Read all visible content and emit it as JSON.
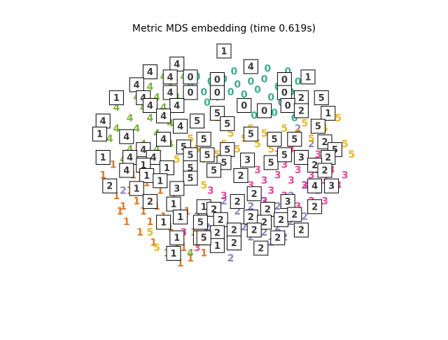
{
  "chart_data": {
    "type": "scatter",
    "title": "Metric MDS embedding (time 0.619s)",
    "axes_visible": false,
    "grid": false,
    "legend": "none",
    "xlim": [
      0,
      1
    ],
    "ylim": [
      0,
      1
    ],
    "series": [
      {
        "name": "0",
        "label": "0",
        "color": "#1b9e77",
        "points": [
          [
            0.4,
            0.82
          ],
          [
            0.42,
            0.86
          ],
          [
            0.44,
            0.8
          ],
          [
            0.46,
            0.84
          ],
          [
            0.48,
            0.78
          ],
          [
            0.5,
            0.85
          ],
          [
            0.52,
            0.8
          ],
          [
            0.54,
            0.83
          ],
          [
            0.56,
            0.79
          ],
          [
            0.58,
            0.84
          ],
          [
            0.6,
            0.81
          ],
          [
            0.62,
            0.85
          ],
          [
            0.64,
            0.78
          ],
          [
            0.66,
            0.82
          ],
          [
            0.68,
            0.86
          ],
          [
            0.7,
            0.8
          ],
          [
            0.72,
            0.84
          ],
          [
            0.74,
            0.78
          ],
          [
            0.45,
            0.76
          ],
          [
            0.55,
            0.75
          ],
          [
            0.61,
            0.74
          ],
          [
            0.67,
            0.76
          ],
          [
            0.73,
            0.75
          ],
          [
            0.53,
            0.88
          ],
          [
            0.63,
            0.89
          ],
          [
            0.69,
            0.88
          ],
          [
            0.49,
            0.72
          ],
          [
            0.59,
            0.71
          ],
          [
            0.65,
            0.72
          ],
          [
            0.71,
            0.7
          ]
        ]
      },
      {
        "name": "1",
        "label": "1",
        "color": "#d95f02",
        "points": [
          [
            0.14,
            0.48
          ],
          [
            0.16,
            0.44
          ],
          [
            0.18,
            0.4
          ],
          [
            0.2,
            0.36
          ],
          [
            0.22,
            0.42
          ],
          [
            0.24,
            0.38
          ],
          [
            0.26,
            0.34
          ],
          [
            0.28,
            0.3
          ],
          [
            0.3,
            0.36
          ],
          [
            0.32,
            0.32
          ],
          [
            0.34,
            0.28
          ],
          [
            0.36,
            0.24
          ],
          [
            0.38,
            0.2
          ],
          [
            0.4,
            0.16
          ],
          [
            0.42,
            0.22
          ],
          [
            0.44,
            0.18
          ],
          [
            0.23,
            0.48
          ],
          [
            0.27,
            0.45
          ],
          [
            0.31,
            0.42
          ],
          [
            0.35,
            0.4
          ],
          [
            0.17,
            0.52
          ],
          [
            0.21,
            0.3
          ],
          [
            0.25,
            0.26
          ],
          [
            0.29,
            0.22
          ],
          [
            0.33,
            0.18
          ],
          [
            0.37,
            0.14
          ],
          [
            0.19,
            0.34
          ],
          [
            0.41,
            0.26
          ],
          [
            0.43,
            0.3
          ],
          [
            0.39,
            0.34
          ]
        ]
      },
      {
        "name": "2",
        "label": "2",
        "color": "#7570b3",
        "points": [
          [
            0.42,
            0.32
          ],
          [
            0.45,
            0.28
          ],
          [
            0.48,
            0.24
          ],
          [
            0.5,
            0.3
          ],
          [
            0.52,
            0.26
          ],
          [
            0.54,
            0.22
          ],
          [
            0.56,
            0.28
          ],
          [
            0.58,
            0.24
          ],
          [
            0.6,
            0.2
          ],
          [
            0.62,
            0.26
          ],
          [
            0.64,
            0.22
          ],
          [
            0.66,
            0.28
          ],
          [
            0.68,
            0.24
          ],
          [
            0.7,
            0.3
          ],
          [
            0.72,
            0.26
          ],
          [
            0.74,
            0.32
          ],
          [
            0.46,
            0.36
          ],
          [
            0.5,
            0.38
          ],
          [
            0.54,
            0.34
          ],
          [
            0.58,
            0.36
          ],
          [
            0.62,
            0.38
          ],
          [
            0.66,
            0.36
          ],
          [
            0.7,
            0.4
          ],
          [
            0.74,
            0.44
          ],
          [
            0.78,
            0.5
          ],
          [
            0.8,
            0.56
          ],
          [
            0.76,
            0.6
          ],
          [
            0.72,
            0.66
          ],
          [
            0.2,
            0.42
          ],
          [
            0.52,
            0.16
          ]
        ]
      },
      {
        "name": "3",
        "label": "3",
        "color": "#e7298a",
        "points": [
          [
            0.55,
            0.48
          ],
          [
            0.58,
            0.44
          ],
          [
            0.6,
            0.5
          ],
          [
            0.62,
            0.46
          ],
          [
            0.64,
            0.42
          ],
          [
            0.66,
            0.48
          ],
          [
            0.68,
            0.52
          ],
          [
            0.7,
            0.46
          ],
          [
            0.72,
            0.5
          ],
          [
            0.74,
            0.44
          ],
          [
            0.76,
            0.48
          ],
          [
            0.78,
            0.42
          ],
          [
            0.8,
            0.46
          ],
          [
            0.82,
            0.5
          ],
          [
            0.84,
            0.44
          ],
          [
            0.86,
            0.48
          ],
          [
            0.66,
            0.56
          ],
          [
            0.7,
            0.58
          ],
          [
            0.74,
            0.54
          ],
          [
            0.78,
            0.56
          ],
          [
            0.82,
            0.54
          ],
          [
            0.62,
            0.38
          ],
          [
            0.68,
            0.4
          ],
          [
            0.72,
            0.36
          ],
          [
            0.76,
            0.38
          ],
          [
            0.5,
            0.4
          ],
          [
            0.46,
            0.42
          ],
          [
            0.42,
            0.2
          ],
          [
            0.38,
            0.26
          ],
          [
            0.8,
            0.38
          ]
        ]
      },
      {
        "name": "4",
        "label": "4",
        "color": "#66a61e",
        "points": [
          [
            0.18,
            0.66
          ],
          [
            0.2,
            0.62
          ],
          [
            0.22,
            0.7
          ],
          [
            0.24,
            0.66
          ],
          [
            0.26,
            0.74
          ],
          [
            0.28,
            0.7
          ],
          [
            0.3,
            0.78
          ],
          [
            0.32,
            0.74
          ],
          [
            0.34,
            0.82
          ],
          [
            0.36,
            0.78
          ],
          [
            0.38,
            0.86
          ],
          [
            0.22,
            0.58
          ],
          [
            0.26,
            0.6
          ],
          [
            0.3,
            0.64
          ],
          [
            0.34,
            0.68
          ],
          [
            0.24,
            0.78
          ],
          [
            0.28,
            0.82
          ],
          [
            0.32,
            0.86
          ],
          [
            0.36,
            0.9
          ],
          [
            0.2,
            0.54
          ],
          [
            0.16,
            0.62
          ],
          [
            0.14,
            0.7
          ],
          [
            0.18,
            0.74
          ],
          [
            0.3,
            0.58
          ],
          [
            0.26,
            0.52
          ],
          [
            0.34,
            0.6
          ],
          [
            0.32,
            0.52
          ],
          [
            0.36,
            0.2
          ],
          [
            0.4,
            0.18
          ],
          [
            0.58,
            0.9
          ]
        ]
      },
      {
        "name": "5",
        "label": "5",
        "color": "#e6ab02",
        "points": [
          [
            0.38,
            0.66
          ],
          [
            0.4,
            0.62
          ],
          [
            0.42,
            0.58
          ],
          [
            0.44,
            0.54
          ],
          [
            0.46,
            0.5
          ],
          [
            0.48,
            0.56
          ],
          [
            0.5,
            0.6
          ],
          [
            0.52,
            0.64
          ],
          [
            0.54,
            0.58
          ],
          [
            0.56,
            0.62
          ],
          [
            0.58,
            0.66
          ],
          [
            0.6,
            0.6
          ],
          [
            0.62,
            0.64
          ],
          [
            0.64,
            0.58
          ],
          [
            0.66,
            0.62
          ],
          [
            0.68,
            0.66
          ],
          [
            0.7,
            0.6
          ],
          [
            0.72,
            0.64
          ],
          [
            0.74,
            0.68
          ],
          [
            0.76,
            0.62
          ],
          [
            0.8,
            0.66
          ],
          [
            0.84,
            0.7
          ],
          [
            0.86,
            0.6
          ],
          [
            0.88,
            0.56
          ],
          [
            0.36,
            0.54
          ],
          [
            0.4,
            0.46
          ],
          [
            0.44,
            0.44
          ],
          [
            0.3,
            0.2
          ],
          [
            0.28,
            0.26
          ],
          [
            0.48,
            0.7
          ]
        ]
      }
    ],
    "thumbnails": [
      {
        "label": "1",
        "x": 0.5,
        "y": 0.96
      },
      {
        "label": "4",
        "x": 0.58,
        "y": 0.9
      },
      {
        "label": "4",
        "x": 0.28,
        "y": 0.88
      },
      {
        "label": "4",
        "x": 0.36,
        "y": 0.91
      },
      {
        "label": "4",
        "x": 0.34,
        "y": 0.86
      },
      {
        "label": "0",
        "x": 0.4,
        "y": 0.86
      },
      {
        "label": "0",
        "x": 0.48,
        "y": 0.85
      },
      {
        "label": "0",
        "x": 0.68,
        "y": 0.85
      },
      {
        "label": "1",
        "x": 0.75,
        "y": 0.86
      },
      {
        "label": "4",
        "x": 0.24,
        "y": 0.83
      },
      {
        "label": "1",
        "x": 0.18,
        "y": 0.78
      },
      {
        "label": "4",
        "x": 0.26,
        "y": 0.78
      },
      {
        "label": "4",
        "x": 0.34,
        "y": 0.8
      },
      {
        "label": "0",
        "x": 0.4,
        "y": 0.8
      },
      {
        "label": "0",
        "x": 0.48,
        "y": 0.8
      },
      {
        "label": "0",
        "x": 0.68,
        "y": 0.8
      },
      {
        "label": "2",
        "x": 0.73,
        "y": 0.78
      },
      {
        "label": "5",
        "x": 0.79,
        "y": 0.78
      },
      {
        "label": "4",
        "x": 0.28,
        "y": 0.75
      },
      {
        "label": "4",
        "x": 0.36,
        "y": 0.75
      },
      {
        "label": "5",
        "x": 0.48,
        "y": 0.72
      },
      {
        "label": "0",
        "x": 0.56,
        "y": 0.75
      },
      {
        "label": "0",
        "x": 0.62,
        "y": 0.73
      },
      {
        "label": "0",
        "x": 0.69,
        "y": 0.75
      },
      {
        "label": "2",
        "x": 0.73,
        "y": 0.73
      },
      {
        "label": "1",
        "x": 0.81,
        "y": 0.72
      },
      {
        "label": "4",
        "x": 0.14,
        "y": 0.69
      },
      {
        "label": "4",
        "x": 0.32,
        "y": 0.71
      },
      {
        "label": "4",
        "x": 0.37,
        "y": 0.67
      },
      {
        "label": "5",
        "x": 0.42,
        "y": 0.69
      },
      {
        "label": "5",
        "x": 0.51,
        "y": 0.68
      },
      {
        "label": "5",
        "x": 0.78,
        "y": 0.67
      },
      {
        "label": "1",
        "x": 0.13,
        "y": 0.64
      },
      {
        "label": "4",
        "x": 0.21,
        "y": 0.63
      },
      {
        "label": "4",
        "x": 0.32,
        "y": 0.62
      },
      {
        "label": "5",
        "x": 0.44,
        "y": 0.62
      },
      {
        "label": "5",
        "x": 0.58,
        "y": 0.64
      },
      {
        "label": "5",
        "x": 0.65,
        "y": 0.62
      },
      {
        "label": "5",
        "x": 0.71,
        "y": 0.62
      },
      {
        "label": "2",
        "x": 0.8,
        "y": 0.61
      },
      {
        "label": "5",
        "x": 0.83,
        "y": 0.58
      },
      {
        "label": "4",
        "x": 0.26,
        "y": 0.58
      },
      {
        "label": "5",
        "x": 0.38,
        "y": 0.59
      },
      {
        "label": "5",
        "x": 0.51,
        "y": 0.58
      },
      {
        "label": "1",
        "x": 0.14,
        "y": 0.55
      },
      {
        "label": "4",
        "x": 0.22,
        "y": 0.55
      },
      {
        "label": "4",
        "x": 0.29,
        "y": 0.55
      },
      {
        "label": "5",
        "x": 0.4,
        "y": 0.56
      },
      {
        "label": "5",
        "x": 0.45,
        "y": 0.56
      },
      {
        "label": "5",
        "x": 0.5,
        "y": 0.53
      },
      {
        "label": "5",
        "x": 0.64,
        "y": 0.53
      },
      {
        "label": "5",
        "x": 0.68,
        "y": 0.56
      },
      {
        "label": "3",
        "x": 0.73,
        "y": 0.55
      },
      {
        "label": "2",
        "x": 0.81,
        "y": 0.55
      },
      {
        "label": "1",
        "x": 0.26,
        "y": 0.52
      },
      {
        "label": "1",
        "x": 0.33,
        "y": 0.51
      },
      {
        "label": "5",
        "x": 0.4,
        "y": 0.51
      },
      {
        "label": "5",
        "x": 0.47,
        "y": 0.5
      },
      {
        "label": "3",
        "x": 0.57,
        "y": 0.54
      },
      {
        "label": "2",
        "x": 0.77,
        "y": 0.52
      },
      {
        "label": "2",
        "x": 0.8,
        "y": 0.5
      },
      {
        "label": "4",
        "x": 0.21,
        "y": 0.5
      },
      {
        "label": "1",
        "x": 0.27,
        "y": 0.48
      },
      {
        "label": "5",
        "x": 0.4,
        "y": 0.47
      },
      {
        "label": "2",
        "x": 0.55,
        "y": 0.48
      },
      {
        "label": "2",
        "x": 0.16,
        "y": 0.44
      },
      {
        "label": "1",
        "x": 0.31,
        "y": 0.46
      },
      {
        "label": "3",
        "x": 0.36,
        "y": 0.43
      },
      {
        "label": "3",
        "x": 0.82,
        "y": 0.44
      },
      {
        "label": "1",
        "x": 0.24,
        "y": 0.43
      },
      {
        "label": "4",
        "x": 0.77,
        "y": 0.44
      },
      {
        "label": "2",
        "x": 0.59,
        "y": 0.41
      },
      {
        "label": "2",
        "x": 0.28,
        "y": 0.38
      },
      {
        "label": "2",
        "x": 0.54,
        "y": 0.38
      },
      {
        "label": "3",
        "x": 0.69,
        "y": 0.38
      },
      {
        "label": "1",
        "x": 0.35,
        "y": 0.37
      },
      {
        "label": "1",
        "x": 0.44,
        "y": 0.36
      },
      {
        "label": "2",
        "x": 0.47,
        "y": 0.35
      },
      {
        "label": "2",
        "x": 0.63,
        "y": 0.35
      },
      {
        "label": "2",
        "x": 0.77,
        "y": 0.36
      },
      {
        "label": "2",
        "x": 0.49,
        "y": 0.31
      },
      {
        "label": "1",
        "x": 0.37,
        "y": 0.32
      },
      {
        "label": "2",
        "x": 0.58,
        "y": 0.32
      },
      {
        "label": "2",
        "x": 0.67,
        "y": 0.31
      },
      {
        "label": "2",
        "x": 0.71,
        "y": 0.33
      },
      {
        "label": "5",
        "x": 0.43,
        "y": 0.3
      },
      {
        "label": "1",
        "x": 0.32,
        "y": 0.3
      },
      {
        "label": "2",
        "x": 0.62,
        "y": 0.3
      },
      {
        "label": "2",
        "x": 0.73,
        "y": 0.27
      },
      {
        "label": "1",
        "x": 0.36,
        "y": 0.24
      },
      {
        "label": "2",
        "x": 0.48,
        "y": 0.26
      },
      {
        "label": "2",
        "x": 0.53,
        "y": 0.27
      },
      {
        "label": "2",
        "x": 0.59,
        "y": 0.27
      },
      {
        "label": "2",
        "x": 0.66,
        "y": 0.24
      },
      {
        "label": "1",
        "x": 0.35,
        "y": 0.18
      },
      {
        "label": "2",
        "x": 0.53,
        "y": 0.22
      },
      {
        "label": "2",
        "x": 0.61,
        "y": 0.2
      },
      {
        "label": "1",
        "x": 0.43,
        "y": 0.24
      },
      {
        "label": "1",
        "x": 0.48,
        "y": 0.21
      },
      {
        "label": "5",
        "x": 0.44,
        "y": 0.24
      }
    ]
  }
}
